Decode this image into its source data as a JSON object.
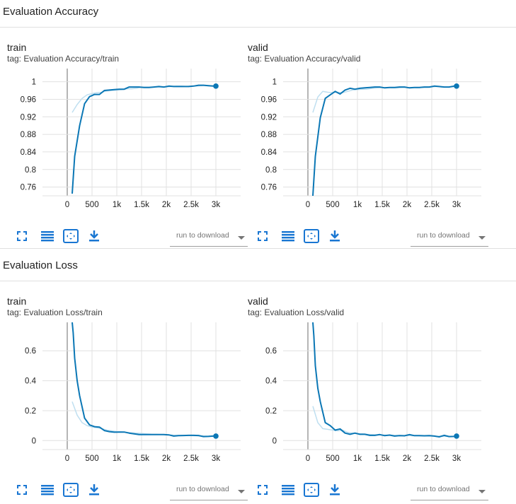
{
  "sections": [
    {
      "title": "Evaluation Accuracy",
      "cards": [
        {
          "title": "train",
          "tag": "tag: Evaluation Accuracy/train",
          "download_placeholder": "run to download",
          "chart_data": {
            "type": "line",
            "xlim": [
              -500,
              3500
            ],
            "ylim": [
              0.74,
              1.03
            ],
            "xticks": [
              0,
              500,
              1000,
              1500,
              2000,
              2500,
              3000
            ],
            "xtick_labels": [
              "0",
              "500",
              "1k",
              "1.5k",
              "2k",
              "2.5k",
              "3k"
            ],
            "yticks": [
              0.76,
              0.8,
              0.84,
              0.88,
              0.92,
              0.96,
              1
            ],
            "ytick_labels": [
              "0.76",
              "0.8",
              "0.84",
              "0.88",
              "0.92",
              "0.96",
              "1"
            ],
            "series": [
              {
                "role": "raw",
                "color": "#bfdff0",
                "x": [
                  100,
                  200,
                  300,
                  400,
                  500,
                  600,
                  700,
                  800,
                  900,
                  1000,
                  1100,
                  1200,
                  1300,
                  1400,
                  1500,
                  1600,
                  1700,
                  1800,
                  1900,
                  2000,
                  2100,
                  2200,
                  2300,
                  2400,
                  2500,
                  2600,
                  2700,
                  2800,
                  2900,
                  3000
                ],
                "y": [
                  0.93,
                  0.948,
                  0.962,
                  0.97,
                  0.973,
                  0.975,
                  0.976,
                  0.979,
                  0.98,
                  0.981,
                  0.982,
                  0.984,
                  0.984,
                  0.985,
                  0.988,
                  0.988,
                  0.988,
                  0.988,
                  0.988,
                  0.988,
                  0.989,
                  0.99,
                  0.99,
                  0.989,
                  0.99,
                  0.99,
                  0.991,
                  0.992,
                  0.991,
                  0.99
                ]
              },
              {
                "role": "smoothed",
                "color": "#0b77b5",
                "x": [
                  100,
                  150,
                  250,
                  350,
                  450,
                  550,
                  650,
                  750,
                  850,
                  950,
                  1050,
                  1150,
                  1250,
                  1350,
                  1450,
                  1550,
                  1650,
                  1750,
                  1850,
                  1950,
                  2050,
                  2150,
                  2250,
                  2350,
                  2450,
                  2550,
                  2650,
                  2750,
                  2850,
                  2950,
                  3000
                ],
                "y": [
                  0.745,
                  0.83,
                  0.9,
                  0.95,
                  0.966,
                  0.971,
                  0.971,
                  0.98,
                  0.981,
                  0.982,
                  0.983,
                  0.983,
                  0.988,
                  0.988,
                  0.988,
                  0.987,
                  0.987,
                  0.988,
                  0.989,
                  0.988,
                  0.99,
                  0.989,
                  0.989,
                  0.989,
                  0.989,
                  0.99,
                  0.992,
                  0.992,
                  0.991,
                  0.99,
                  0.99
                ]
              }
            ]
          }
        },
        {
          "title": "valid",
          "tag": "tag: Evaluation Accuracy/valid",
          "download_placeholder": "run to download",
          "chart_data": {
            "type": "line",
            "xlim": [
              -500,
              3500
            ],
            "ylim": [
              0.74,
              1.03
            ],
            "xticks": [
              0,
              500,
              1000,
              1500,
              2000,
              2500,
              3000
            ],
            "xtick_labels": [
              "0",
              "500",
              "1k",
              "1.5k",
              "2k",
              "2.5k",
              "3k"
            ],
            "yticks": [
              0.76,
              0.8,
              0.84,
              0.88,
              0.92,
              0.96,
              1
            ],
            "ytick_labels": [
              "0.76",
              "0.8",
              "0.84",
              "0.88",
              "0.92",
              "0.96",
              "1"
            ],
            "series": [
              {
                "role": "raw",
                "color": "#bfdff0",
                "x": [
                  100,
                  200,
                  300,
                  400,
                  500,
                  600,
                  700,
                  800,
                  900,
                  1000,
                  1100,
                  1200,
                  1300,
                  1400,
                  1500,
                  1600,
                  1700,
                  1800,
                  1900,
                  2000,
                  2100,
                  2200,
                  2300,
                  2400,
                  2500,
                  2600,
                  2700,
                  2800,
                  2900,
                  3000
                ],
                "y": [
                  0.93,
                  0.965,
                  0.978,
                  0.976,
                  0.975,
                  0.976,
                  0.975,
                  0.978,
                  0.981,
                  0.982,
                  0.983,
                  0.983,
                  0.985,
                  0.986,
                  0.987,
                  0.987,
                  0.986,
                  0.986,
                  0.987,
                  0.987,
                  0.987,
                  0.986,
                  0.987,
                  0.987,
                  0.988,
                  0.989,
                  0.988,
                  0.988,
                  0.988,
                  0.989
                ]
              },
              {
                "role": "smoothed",
                "color": "#0b77b5",
                "x": [
                  100,
                  150,
                  250,
                  350,
                  450,
                  550,
                  650,
                  750,
                  850,
                  950,
                  1050,
                  1150,
                  1250,
                  1350,
                  1450,
                  1550,
                  1650,
                  1750,
                  1850,
                  1950,
                  2050,
                  2150,
                  2250,
                  2350,
                  2450,
                  2550,
                  2650,
                  2750,
                  2850,
                  2950,
                  3000
                ],
                "y": [
                  0.74,
                  0.83,
                  0.918,
                  0.962,
                  0.97,
                  0.978,
                  0.972,
                  0.981,
                  0.985,
                  0.983,
                  0.985,
                  0.986,
                  0.987,
                  0.988,
                  0.988,
                  0.986,
                  0.987,
                  0.987,
                  0.988,
                  0.988,
                  0.986,
                  0.987,
                  0.987,
                  0.988,
                  0.988,
                  0.99,
                  0.989,
                  0.988,
                  0.988,
                  0.99,
                  0.99
                ]
              }
            ]
          }
        }
      ]
    },
    {
      "title": "Evaluation Loss",
      "cards": [
        {
          "title": "train",
          "tag": "tag: Evaluation Loss/train",
          "download_placeholder": "run to download",
          "chart_data": {
            "type": "line",
            "xlim": [
              -500,
              3500
            ],
            "ylim": [
              -0.06,
              0.79
            ],
            "xticks": [
              0,
              500,
              1000,
              1500,
              2000,
              2500,
              3000
            ],
            "xtick_labels": [
              "0",
              "500",
              "1k",
              "1.5k",
              "2k",
              "2.5k",
              "3k"
            ],
            "yticks": [
              0,
              0.2,
              0.4,
              0.6
            ],
            "ytick_labels": [
              "0",
              "0.2",
              "0.4",
              "0.6"
            ],
            "series": [
              {
                "role": "raw",
                "color": "#bfdff0",
                "x": [
                  100,
                  200,
                  300,
                  400,
                  500,
                  600,
                  700,
                  800,
                  900,
                  1000,
                  1100,
                  1200,
                  1300,
                  1400,
                  1500,
                  1600,
                  1700,
                  1800,
                  1900,
                  2000,
                  2100,
                  2200,
                  2300,
                  2400,
                  2500,
                  2600,
                  2700,
                  2800,
                  2900,
                  3000
                ],
                "y": [
                  0.26,
                  0.17,
                  0.12,
                  0.1,
                  0.09,
                  0.085,
                  0.08,
                  0.07,
                  0.065,
                  0.06,
                  0.058,
                  0.055,
                  0.052,
                  0.05,
                  0.048,
                  0.045,
                  0.043,
                  0.042,
                  0.04,
                  0.038,
                  0.037,
                  0.036,
                  0.035,
                  0.034,
                  0.033,
                  0.032,
                  0.031,
                  0.03,
                  0.03,
                  0.03
                ]
              },
              {
                "role": "smoothed",
                "color": "#0b77b5",
                "x": [
                  100,
                  120,
                  150,
                  200,
                  250,
                  350,
                  450,
                  550,
                  650,
                  750,
                  850,
                  950,
                  1050,
                  1150,
                  1250,
                  1350,
                  1450,
                  1550,
                  1650,
                  1750,
                  1850,
                  1950,
                  2050,
                  2150,
                  2250,
                  2350,
                  2450,
                  2550,
                  2650,
                  2750,
                  2850,
                  2950,
                  3000
                ],
                "y": [
                  0.79,
                  0.72,
                  0.55,
                  0.4,
                  0.3,
                  0.15,
                  0.105,
                  0.093,
                  0.09,
                  0.067,
                  0.06,
                  0.056,
                  0.057,
                  0.057,
                  0.05,
                  0.045,
                  0.04,
                  0.04,
                  0.04,
                  0.04,
                  0.04,
                  0.04,
                  0.038,
                  0.03,
                  0.033,
                  0.034,
                  0.035,
                  0.035,
                  0.034,
                  0.027,
                  0.028,
                  0.03,
                  0.03
                ]
              }
            ]
          }
        },
        {
          "title": "valid",
          "tag": "tag: Evaluation Loss/valid",
          "download_placeholder": "run to download",
          "chart_data": {
            "type": "line",
            "xlim": [
              -500,
              3500
            ],
            "ylim": [
              -0.06,
              0.79
            ],
            "xticks": [
              0,
              500,
              1000,
              1500,
              2000,
              2500,
              3000
            ],
            "xtick_labels": [
              "0",
              "500",
              "1k",
              "1.5k",
              "2k",
              "2.5k",
              "3k"
            ],
            "yticks": [
              0,
              0.2,
              0.4,
              0.6
            ],
            "ytick_labels": [
              "0",
              "0.2",
              "0.4",
              "0.6"
            ],
            "series": [
              {
                "role": "raw",
                "color": "#bfdff0",
                "x": [
                  100,
                  200,
                  300,
                  400,
                  500,
                  600,
                  700,
                  800,
                  900,
                  1000,
                  1100,
                  1200,
                  1300,
                  1400,
                  1500,
                  1600,
                  1700,
                  1800,
                  1900,
                  2000,
                  2100,
                  2200,
                  2300,
                  2400,
                  2500,
                  2600,
                  2700,
                  2800,
                  2900,
                  3000
                ],
                "y": [
                  0.23,
                  0.12,
                  0.08,
                  0.075,
                  0.07,
                  0.065,
                  0.07,
                  0.055,
                  0.05,
                  0.045,
                  0.045,
                  0.042,
                  0.04,
                  0.038,
                  0.038,
                  0.036,
                  0.035,
                  0.035,
                  0.034,
                  0.033,
                  0.032,
                  0.032,
                  0.031,
                  0.03,
                  0.03,
                  0.029,
                  0.029,
                  0.028,
                  0.028,
                  0.028
                ]
              },
              {
                "role": "smoothed",
                "color": "#0b77b5",
                "x": [
                  100,
                  120,
                  150,
                  200,
                  250,
                  350,
                  450,
                  550,
                  650,
                  750,
                  850,
                  950,
                  1050,
                  1150,
                  1250,
                  1350,
                  1450,
                  1550,
                  1650,
                  1750,
                  1850,
                  1950,
                  2050,
                  2150,
                  2250,
                  2350,
                  2450,
                  2550,
                  2650,
                  2750,
                  2850,
                  2950,
                  3000
                ],
                "y": [
                  0.79,
                  0.7,
                  0.5,
                  0.35,
                  0.26,
                  0.12,
                  0.1,
                  0.07,
                  0.078,
                  0.05,
                  0.042,
                  0.05,
                  0.042,
                  0.042,
                  0.035,
                  0.035,
                  0.04,
                  0.033,
                  0.037,
                  0.03,
                  0.033,
                  0.032,
                  0.04,
                  0.033,
                  0.033,
                  0.032,
                  0.033,
                  0.03,
                  0.025,
                  0.035,
                  0.027,
                  0.028,
                  0.03
                ]
              }
            ]
          }
        }
      ]
    }
  ]
}
